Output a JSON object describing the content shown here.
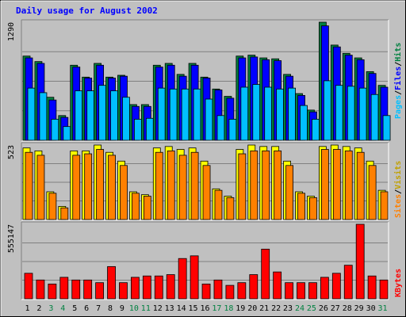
{
  "chart_data": [
    {
      "type": "bar",
      "title": "Daily usage for August 2002",
      "scale_label": "1290",
      "categories": [
        "1",
        "2",
        "3",
        "4",
        "5",
        "6",
        "7",
        "8",
        "9",
        "10",
        "11",
        "12",
        "13",
        "14",
        "15",
        "16",
        "17",
        "18",
        "19",
        "20",
        "21",
        "22",
        "23",
        "24",
        "25",
        "26",
        "27",
        "28",
        "29",
        "30",
        "31"
      ],
      "weekend_days": [
        "3",
        "4",
        "10",
        "11",
        "17",
        "18",
        "24",
        "25",
        "31"
      ],
      "legend": {
        "a": "Pages",
        "sep1": "/",
        "b": "Files",
        "sep2": "/",
        "c": "Hits"
      },
      "series": [
        {
          "name": "Hits",
          "color": "#008040",
          "values": [
            920,
            860,
            470,
            270,
            820,
            690,
            840,
            690,
            710,
            390,
            390,
            820,
            840,
            720,
            840,
            690,
            560,
            480,
            920,
            930,
            900,
            890,
            720,
            510,
            330,
            1290,
            1040,
            950,
            900,
            750,
            600
          ]
        },
        {
          "name": "Files",
          "color": "#0000ff",
          "values": [
            900,
            840,
            440,
            250,
            800,
            680,
            820,
            680,
            700,
            370,
            370,
            800,
            820,
            700,
            820,
            680,
            550,
            460,
            900,
            910,
            880,
            870,
            700,
            490,
            310,
            1250,
            1020,
            930,
            880,
            730,
            580
          ]
        },
        {
          "name": "Pages",
          "color": "#00bfff",
          "values": [
            570,
            520,
            230,
            150,
            540,
            540,
            600,
            540,
            470,
            230,
            240,
            570,
            560,
            560,
            560,
            450,
            270,
            230,
            580,
            610,
            580,
            560,
            570,
            380,
            230,
            650,
            600,
            590,
            570,
            500,
            270
          ]
        }
      ]
    },
    {
      "type": "bar",
      "scale_label": "523",
      "categories": [
        "1",
        "2",
        "3",
        "4",
        "5",
        "6",
        "7",
        "8",
        "9",
        "10",
        "11",
        "12",
        "13",
        "14",
        "15",
        "16",
        "17",
        "18",
        "19",
        "20",
        "21",
        "22",
        "23",
        "24",
        "25",
        "26",
        "27",
        "28",
        "29",
        "30",
        "31"
      ],
      "legend": {
        "a": "Sites",
        "sep1": "/",
        "b": "Visits"
      },
      "series": [
        {
          "name": "Visits",
          "color": "#ffff00",
          "values": [
            490,
            470,
            190,
            90,
            470,
            470,
            510,
            460,
            400,
            190,
            170,
            490,
            500,
            480,
            490,
            400,
            210,
            160,
            480,
            510,
            500,
            500,
            400,
            190,
            160,
            500,
            510,
            500,
            490,
            400,
            200
          ]
        },
        {
          "name": "Sites",
          "color": "#ff8000",
          "values": [
            460,
            440,
            180,
            80,
            440,
            450,
            480,
            440,
            370,
            180,
            160,
            460,
            470,
            440,
            460,
            370,
            200,
            150,
            450,
            470,
            470,
            470,
            370,
            180,
            150,
            480,
            480,
            470,
            460,
            370,
            190
          ]
        }
      ]
    },
    {
      "type": "bar",
      "scale_label": "555147",
      "categories": [
        "1",
        "2",
        "3",
        "4",
        "5",
        "6",
        "7",
        "8",
        "9",
        "10",
        "11",
        "12",
        "13",
        "14",
        "15",
        "16",
        "17",
        "18",
        "19",
        "20",
        "21",
        "22",
        "23",
        "24",
        "25",
        "26",
        "27",
        "28",
        "29",
        "30",
        "31"
      ],
      "legend": {
        "a": "KBytes"
      },
      "series": [
        {
          "name": "KBytes",
          "color": "#ff0000",
          "values": [
            190000,
            140000,
            110000,
            160000,
            140000,
            140000,
            120000,
            240000,
            120000,
            160000,
            170000,
            170000,
            180000,
            300000,
            320000,
            110000,
            140000,
            100000,
            120000,
            180000,
            370000,
            200000,
            120000,
            120000,
            120000,
            160000,
            190000,
            250000,
            555147,
            170000,
            140000
          ]
        }
      ]
    }
  ]
}
